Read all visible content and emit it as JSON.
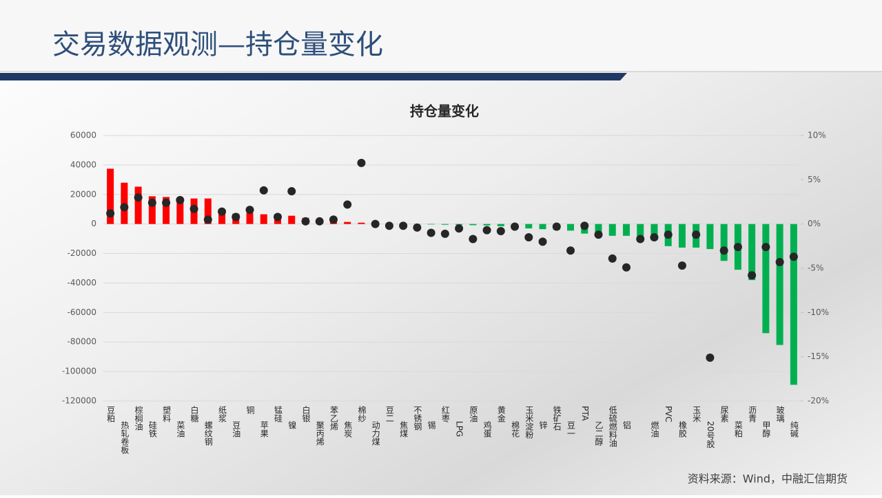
{
  "slide_title": "交易数据观测—持仓量变化",
  "source": "资料来源：Wind，中融汇信期货",
  "chart_data": {
    "type": "bar",
    "title": "持仓量变化",
    "categories": [
      "豆粕",
      "热轧卷板",
      "棕榈油",
      "硅铁",
      "塑料",
      "菜油",
      "白糖",
      "螺纹钢",
      "纸浆",
      "豆油",
      "铜",
      "苹果",
      "锰硅",
      "镍",
      "白银",
      "聚丙烯",
      "苯乙烯",
      "焦炭",
      "棉纱",
      "动力煤",
      "豆二",
      "焦煤",
      "不锈钢",
      "锡",
      "红枣",
      "LPG",
      "原油",
      "鸡蛋",
      "黄金",
      "棉花",
      "玉米淀粉",
      "锌",
      "铁矿石",
      "豆一",
      "PTA",
      "乙二醇",
      "低硫燃料油",
      "铝",
      null,
      "燃油",
      "PVC",
      "橡胶",
      "玉米",
      "20号胶",
      "尿素",
      "菜粕",
      "沥青",
      "甲醇",
      "玻璃",
      "纯碱"
    ],
    "series": [
      {
        "type": "bar",
        "color_positive": "#ff0000",
        "color_negative": "#00b050",
        "values": [
          37500,
          28000,
          25300,
          18800,
          18300,
          17800,
          17300,
          17300,
          8000,
          7000,
          7500,
          6600,
          6600,
          5600,
          4200,
          3300,
          2300,
          1400,
          900,
          300,
          200,
          100,
          -200,
          -300,
          -500,
          -600,
          -800,
          -1000,
          -1500,
          -2500,
          -3000,
          -3500,
          -4000,
          -4500,
          -6500,
          -7500,
          -8000,
          -8000,
          -8500,
          -11000,
          -15000,
          -16000,
          -16000,
          -17000,
          -25000,
          -31000,
          -38000,
          -74000,
          -82000,
          -109000
        ]
      },
      {
        "type": "scatter",
        "axis": "y2",
        "color": "#262626",
        "values": [
          1.2,
          1.9,
          3.0,
          2.4,
          2.4,
          2.7,
          1.7,
          0.5,
          1.4,
          0.8,
          1.6,
          3.8,
          0.8,
          3.7,
          0.3,
          0.3,
          0.5,
          2.2,
          6.9,
          0,
          -0.2,
          -0.2,
          -0.4,
          -1.0,
          -1.1,
          -0.5,
          -1.7,
          -0.7,
          -0.8,
          -0.3,
          -1.5,
          -2.0,
          -0.3,
          -3.0,
          -0.2,
          -1.2,
          -3.9,
          -4.9,
          -1.7,
          -1.5,
          -1.2,
          -4.7,
          -1.2,
          -15.1,
          -3.0,
          -2.6,
          -5.8,
          -2.6,
          -4.3,
          -3.7
        ]
      }
    ],
    "ylim": [
      -120000,
      60000
    ],
    "yticks": [
      -120000,
      -100000,
      -80000,
      -60000,
      -40000,
      -20000,
      0,
      20000,
      40000,
      60000
    ],
    "y2lim": [
      -20,
      10
    ],
    "y2ticks": [
      {
        "value": -20,
        "label": "-20%"
      },
      {
        "value": -15,
        "label": "-15%"
      },
      {
        "value": -10,
        "label": "-10%"
      },
      {
        "value": -5,
        "label": "-5%"
      },
      {
        "value": 0,
        "label": "0%"
      },
      {
        "value": 5,
        "label": "5%"
      },
      {
        "value": 10,
        "label": "10%"
      }
    ],
    "grid": true
  }
}
